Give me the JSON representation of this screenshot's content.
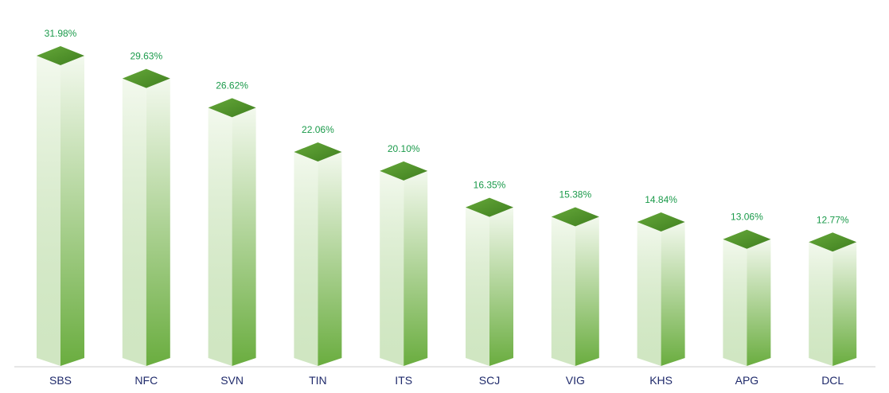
{
  "chart_data": {
    "type": "bar",
    "title": "",
    "xlabel": "",
    "ylabel": "",
    "categories": [
      "SBS",
      "NFC",
      "SVN",
      "TIN",
      "ITS",
      "SCJ",
      "VIG",
      "KHS",
      "APG",
      "DCL"
    ],
    "values": [
      31.98,
      29.63,
      26.62,
      22.06,
      20.1,
      16.35,
      15.38,
      14.84,
      13.06,
      12.77
    ],
    "value_labels": [
      "31.98%",
      "29.63%",
      "26.62%",
      "22.06%",
      "20.10%",
      "16.35%",
      "15.38%",
      "14.84%",
      "13.06%",
      "12.77%"
    ],
    "ylim": [
      0,
      31.98
    ],
    "grid": false,
    "legend": "none",
    "style": "3d-box"
  },
  "colors": {
    "bar_light": "#f3f9ee",
    "bar_mid": "#a9d290",
    "bar_dark": "#6aad3f",
    "bar_top": "#66a83a",
    "bar_top_dark": "#3f7f1f",
    "value_label": "#1a9a4a",
    "tick_label": "#1f2a6b",
    "axis": "#cccccc"
  }
}
